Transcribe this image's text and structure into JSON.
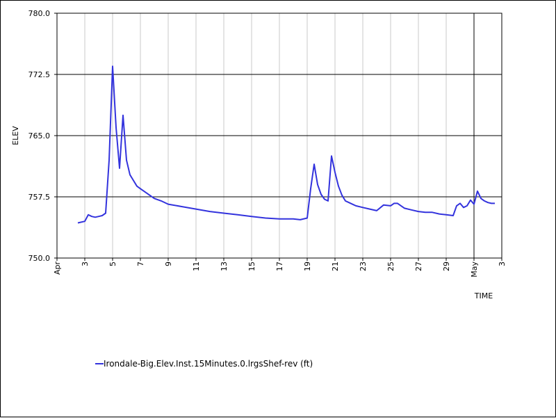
{
  "chart_data": {
    "type": "line",
    "title": "",
    "xlabel": "TIME",
    "ylabel": "ELEV",
    "ylim": [
      750.0,
      780.0
    ],
    "y_ticks": [
      "750.0",
      "757.5",
      "765.0",
      "772.5",
      "780.0"
    ],
    "y_tick_values": [
      750.0,
      757.5,
      765.0,
      772.5,
      780.0
    ],
    "major_grid_y": [
      757.5,
      765.0,
      772.5
    ],
    "x_start": "2024-04-01",
    "x_end": "2024-05-03",
    "x_ticks": [
      {
        "date": "2024-04-01",
        "label": "Apr"
      },
      {
        "date": "2024-04-03",
        "label": "3"
      },
      {
        "date": "2024-04-05",
        "label": "5"
      },
      {
        "date": "2024-04-07",
        "label": "7"
      },
      {
        "date": "2024-04-09",
        "label": "9"
      },
      {
        "date": "2024-04-11",
        "label": "11"
      },
      {
        "date": "2024-04-13",
        "label": "13"
      },
      {
        "date": "2024-04-15",
        "label": "15"
      },
      {
        "date": "2024-04-17",
        "label": "17"
      },
      {
        "date": "2024-04-19",
        "label": "19"
      },
      {
        "date": "2024-04-21",
        "label": "21"
      },
      {
        "date": "2024-04-23",
        "label": "23"
      },
      {
        "date": "2024-04-25",
        "label": "25"
      },
      {
        "date": "2024-04-27",
        "label": "27"
      },
      {
        "date": "2024-04-29",
        "label": "29"
      },
      {
        "date": "2024-05-01",
        "label": "May"
      },
      {
        "date": "2024-05-03",
        "label": "3"
      }
    ],
    "major_grid_x": [
      "2024-05-01"
    ],
    "legend_placement": "bottom-left",
    "series": [
      {
        "name": "Irondale-Big.Elev.Inst.15Minutes.0.lrgsShef-rev (ft)",
        "color": "#3333dd",
        "x": [
          "2024-04-02 12:00",
          "2024-04-03 00:00",
          "2024-04-03 06:00",
          "2024-04-03 12:00",
          "2024-04-03 18:00",
          "2024-04-04 00:00",
          "2024-04-04 06:00",
          "2024-04-04 12:00",
          "2024-04-04 18:00",
          "2024-04-05 00:00",
          "2024-04-05 06:00",
          "2024-04-05 12:00",
          "2024-04-05 18:00",
          "2024-04-06 00:00",
          "2024-04-06 06:00",
          "2024-04-06 12:00",
          "2024-04-06 18:00",
          "2024-04-07 00:00",
          "2024-04-07 12:00",
          "2024-04-08 00:00",
          "2024-04-08 12:00",
          "2024-04-09 00:00",
          "2024-04-10 00:00",
          "2024-04-11 00:00",
          "2024-04-12 00:00",
          "2024-04-13 00:00",
          "2024-04-14 00:00",
          "2024-04-15 00:00",
          "2024-04-16 00:00",
          "2024-04-17 00:00",
          "2024-04-18 00:00",
          "2024-04-18 12:00",
          "2024-04-19 00:00",
          "2024-04-19 06:00",
          "2024-04-19 12:00",
          "2024-04-19 18:00",
          "2024-04-20 00:00",
          "2024-04-20 06:00",
          "2024-04-20 12:00",
          "2024-04-20 18:00",
          "2024-04-21 00:00",
          "2024-04-21 06:00",
          "2024-04-21 12:00",
          "2024-04-21 18:00",
          "2024-04-22 00:00",
          "2024-04-22 12:00",
          "2024-04-23 00:00",
          "2024-04-23 12:00",
          "2024-04-24 00:00",
          "2024-04-24 12:00",
          "2024-04-25 00:00",
          "2024-04-25 06:00",
          "2024-04-25 12:00",
          "2024-04-25 18:00",
          "2024-04-26 00:00",
          "2024-04-26 12:00",
          "2024-04-27 00:00",
          "2024-04-27 12:00",
          "2024-04-28 00:00",
          "2024-04-28 12:00",
          "2024-04-29 00:00",
          "2024-04-29 12:00",
          "2024-04-29 18:00",
          "2024-04-30 00:00",
          "2024-04-30 06:00",
          "2024-04-30 12:00",
          "2024-04-30 18:00",
          "2024-05-01 00:00",
          "2024-05-01 06:00",
          "2024-05-01 12:00",
          "2024-05-01 18:00",
          "2024-05-02 00:00",
          "2024-05-02 06:00",
          "2024-05-02 12:00"
        ],
        "values": [
          754.3,
          754.5,
          755.3,
          755.1,
          755.0,
          755.1,
          755.2,
          755.5,
          762.0,
          773.5,
          766.0,
          761.0,
          767.5,
          762.0,
          760.2,
          759.5,
          758.8,
          758.5,
          757.9,
          757.3,
          757.0,
          756.6,
          756.3,
          756.0,
          755.7,
          755.5,
          755.3,
          755.1,
          754.9,
          754.8,
          754.8,
          754.7,
          754.9,
          758.5,
          761.5,
          759.0,
          757.8,
          757.2,
          757.0,
          762.5,
          760.5,
          758.8,
          757.7,
          757.0,
          756.8,
          756.4,
          756.2,
          756.0,
          755.8,
          756.5,
          756.4,
          756.7,
          756.7,
          756.4,
          756.1,
          755.9,
          755.7,
          755.6,
          755.6,
          755.4,
          755.3,
          755.2,
          756.4,
          756.7,
          756.2,
          756.4,
          757.1,
          756.6,
          758.2,
          757.3,
          757.0,
          756.8,
          756.7,
          756.7
        ]
      }
    ]
  }
}
